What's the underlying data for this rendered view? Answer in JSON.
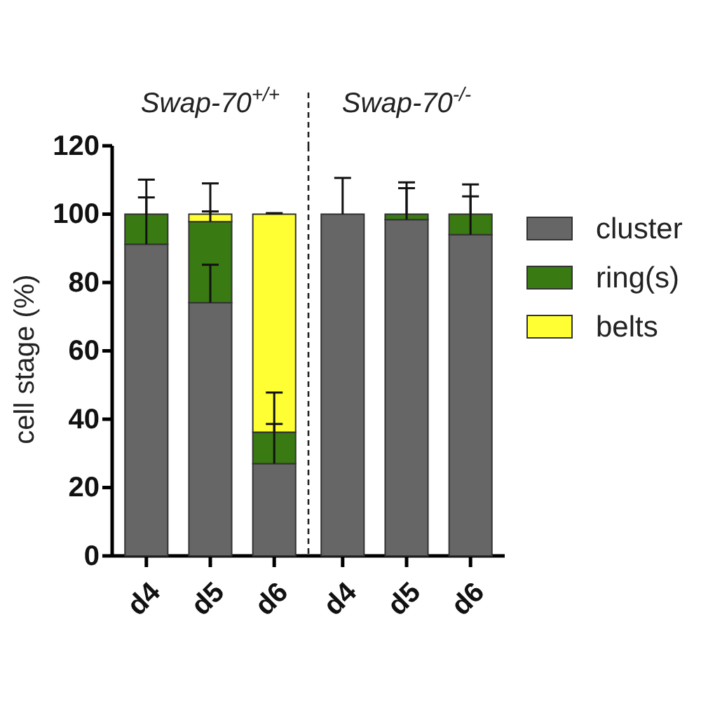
{
  "chart_data": [
    {
      "type": "bar",
      "title": "Swap-70$^{+/+}$",
      "ylabel": "cell stage (%)",
      "categories": [
        "d4",
        "d5",
        "d6"
      ],
      "stacked": true,
      "ylim": [
        0,
        120
      ],
      "yticks": [
        0,
        20,
        40,
        60,
        80,
        100,
        120
      ],
      "legend": false,
      "series": [
        {
          "color": "#666666",
          "values": [
            91.2,
            74.1,
            27.0
          ],
          "errors": [
            [
              91.2,
              104.9
            ],
            [
              74.1,
              85.2
            ],
            [
              27.0,
              38.6
            ]
          ]
        },
        {
          "color": "#3a7a12",
          "values": [
            8.8,
            23.7,
            9.2
          ],
          "errors": [
            [
              100,
              110.1
            ],
            [
              97.8,
              109.0
            ],
            [
              36.2,
              47.8
            ]
          ]
        },
        {
          "color": "#ffff33",
          "values": [
            0,
            2.2,
            63.8
          ],
          "errors": [
            null,
            [
              100,
              100.8
            ],
            [
              100,
              100.3
            ]
          ]
        }
      ]
    },
    {
      "type": "bar",
      "title": "Swap-70$^{-/-}$",
      "categories": [
        "d4",
        "d5",
        "d6"
      ],
      "stacked": true,
      "ylim": [
        0,
        120
      ],
      "yticks": [
        0,
        20,
        40,
        60,
        80,
        100,
        120
      ],
      "tick_labels": "x",
      "legend": "right",
      "series": [
        {
          "name": "cluster",
          "color": "#666666",
          "values": [
            100,
            98.4,
            94.0
          ],
          "errors": [
            [
              100,
              110.6
            ],
            [
              98.4,
              107.6
            ],
            [
              94.0,
              105.2
            ]
          ]
        },
        {
          "name": "ring(s)",
          "color": "#3a7a12",
          "values": [
            0,
            1.6,
            6.0
          ],
          "errors": [
            null,
            [
              100,
              109.3
            ],
            [
              100,
              108.7
            ]
          ]
        },
        {
          "name": "belts",
          "color": "#ffff33",
          "values": [
            0,
            0,
            0
          ],
          "errors": [
            null,
            null,
            null
          ]
        }
      ]
    }
  ]
}
